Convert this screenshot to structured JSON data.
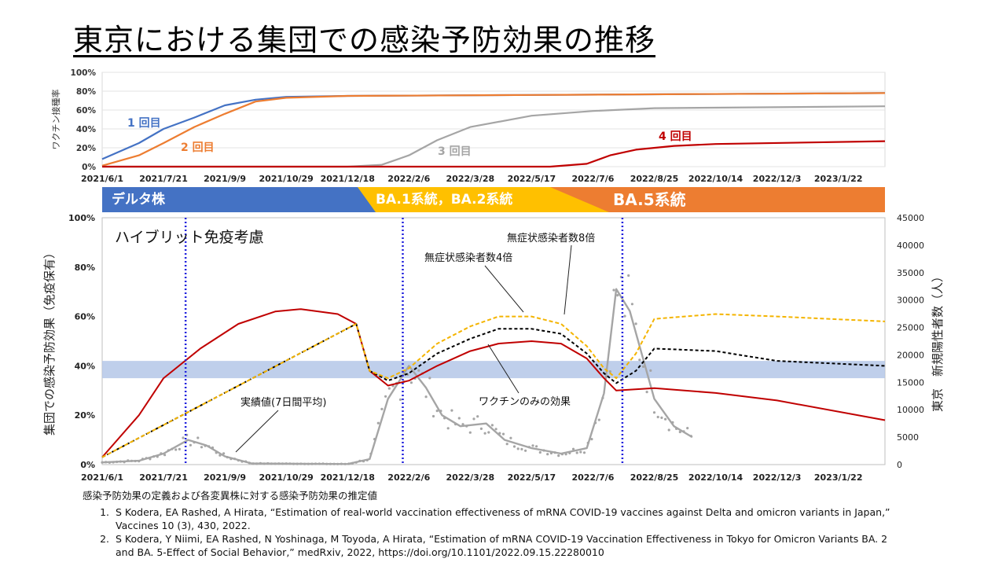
{
  "title": "東京における集団での感染予防効果の推移",
  "colors": {
    "dose1": "#4472c4",
    "dose2": "#ed7d31",
    "dose3": "#a5a5a5",
    "dose4": "#c00000",
    "hybrid_series": "#f4b400",
    "hybrid_black": "#000000",
    "vaccine_only": "#c00000",
    "cases": "#a5a5a5",
    "band": "#b4c7e7",
    "vline": "#2222dd"
  },
  "variants": [
    {
      "label": "デルタ株",
      "color": "#4472c4"
    },
    {
      "label": "BA.1系統，BA.2系統",
      "color": "#ffc000"
    },
    {
      "label": "BA.5系統",
      "color": "#ed7d31"
    }
  ],
  "chart_data": [
    {
      "type": "line",
      "x": [
        "2021/6/1",
        "2021/7/21",
        "2021/9/9",
        "2021/10/29",
        "2021/12/18",
        "2022/2/6",
        "2022/3/28",
        "2022/5/17",
        "2022/7/6",
        "2022/8/25",
        "2022/10/14",
        "2022/12/3",
        "2023/1/22"
      ],
      "ylim": [
        0,
        100
      ],
      "yticks": [
        "0%",
        "20%",
        "40%",
        "60%",
        "80%",
        "100%"
      ],
      "ylabel": "ワクチン接種率",
      "series": [
        {
          "name": "1回目",
          "x": [
            "2021/6/1",
            "2021/7/1",
            "2021/7/21",
            "2021/8/15",
            "2021/9/9",
            "2021/10/4",
            "2021/10/29",
            "2021/12/18",
            "2022/5/17",
            "2023/3/1"
          ],
          "values": [
            8,
            25,
            40,
            52,
            65,
            71,
            74,
            75,
            76,
            78
          ]
        },
        {
          "name": "2回目",
          "x": [
            "2021/6/1",
            "2021/7/1",
            "2021/7/21",
            "2021/8/15",
            "2021/9/9",
            "2021/10/4",
            "2021/10/29",
            "2021/12/18",
            "2022/5/17",
            "2023/3/1"
          ],
          "values": [
            1,
            12,
            25,
            42,
            56,
            69,
            73,
            75,
            76,
            78
          ]
        },
        {
          "name": "3回目",
          "x": [
            "2021/6/1",
            "2021/12/18",
            "2022/1/15",
            "2022/2/6",
            "2022/3/1",
            "2022/3/28",
            "2022/5/17",
            "2022/7/6",
            "2022/8/25",
            "2023/3/1"
          ],
          "values": [
            0,
            0,
            2,
            12,
            28,
            42,
            54,
            59,
            62,
            64
          ]
        },
        {
          "name": "4回目",
          "x": [
            "2021/6/1",
            "2022/6/1",
            "2022/7/1",
            "2022/7/20",
            "2022/8/10",
            "2022/9/10",
            "2022/10/14",
            "2023/3/1"
          ],
          "values": [
            0,
            0,
            3,
            12,
            18,
            22,
            24,
            27
          ]
        }
      ]
    },
    {
      "type": "line",
      "x": [
        "2021/6/1",
        "2021/7/21",
        "2021/9/9",
        "2021/10/29",
        "2021/12/18",
        "2022/2/6",
        "2022/3/28",
        "2022/5/17",
        "2022/7/6",
        "2022/8/25",
        "2022/10/14",
        "2022/12/3",
        "2023/1/22"
      ],
      "ylim": [
        0,
        100
      ],
      "yticks": [
        "0%",
        "20%",
        "40%",
        "60%",
        "80%",
        "100%"
      ],
      "ylabel": "集団での感染予防効果（免疫保有）",
      "y2lim": [
        0,
        45000
      ],
      "y2ticks": [
        "0",
        "5000",
        "10000",
        "15000",
        "20000",
        "25000",
        "30000",
        "35000",
        "40000",
        "45000"
      ],
      "y2label": "東京　新規陽性者数（人）",
      "series": [
        {
          "name": "ワクチンのみの効果",
          "x": [
            "2021/6/1",
            "2021/7/1",
            "2021/7/21",
            "2021/8/20",
            "2021/9/20",
            "2021/10/20",
            "2021/11/10",
            "2021/12/10",
            "2021/12/25",
            "2022/1/5",
            "2022/1/20",
            "2022/2/6",
            "2022/3/1",
            "2022/3/28",
            "2022/4/20",
            "2022/5/17",
            "2022/6/10",
            "2022/7/1",
            "2022/7/15",
            "2022/7/25",
            "2022/8/25",
            "2022/10/14",
            "2022/12/3",
            "2023/3/1"
          ],
          "values": [
            3,
            20,
            35,
            47,
            57,
            62,
            63,
            61,
            57,
            38,
            32,
            34,
            40,
            46,
            49,
            50,
            49,
            43,
            35,
            30,
            31,
            29,
            26,
            18
          ]
        },
        {
          "name": "無症状感染者数4倍",
          "x": [
            "2021/6/1",
            "2021/12/25",
            "2022/1/5",
            "2022/1/20",
            "2022/2/6",
            "2022/3/1",
            "2022/3/28",
            "2022/4/20",
            "2022/5/17",
            "2022/6/10",
            "2022/7/1",
            "2022/7/15",
            "2022/7/25",
            "2022/8/10",
            "2022/8/25",
            "2022/10/14",
            "2022/12/3",
            "2023/3/1"
          ],
          "values": [
            3,
            57,
            38,
            34,
            37,
            45,
            51,
            55,
            55,
            53,
            45,
            37,
            33,
            38,
            47,
            46,
            42,
            40
          ]
        },
        {
          "name": "無症状感染者数8倍",
          "x": [
            "2021/6/1",
            "2021/12/25",
            "2022/1/5",
            "2022/1/20",
            "2022/2/6",
            "2022/3/1",
            "2022/3/28",
            "2022/4/20",
            "2022/5/17",
            "2022/6/10",
            "2022/7/1",
            "2022/7/15",
            "2022/7/25",
            "2022/8/10",
            "2022/8/25",
            "2022/10/14",
            "2022/12/3",
            "2023/3/1"
          ],
          "values": [
            3,
            57,
            38,
            35,
            39,
            49,
            56,
            60,
            60,
            57,
            48,
            39,
            35,
            45,
            59,
            61,
            60,
            58
          ]
        },
        {
          "name": "実績値(7日間平均)",
          "axis": "right",
          "x": [
            "2021/6/1",
            "2021/7/1",
            "2021/7/21",
            "2021/8/10",
            "2021/8/25",
            "2021/9/9",
            "2021/10/1",
            "2021/12/18",
            "2022/1/5",
            "2022/1/20",
            "2022/2/6",
            "2022/2/20",
            "2022/3/5",
            "2022/3/20",
            "2022/4/10",
            "2022/4/25",
            "2022/5/17",
            "2022/6/10",
            "2022/7/1",
            "2022/7/15",
            "2022/7/25",
            "2022/8/5",
            "2022/8/25",
            "2022/9/10",
            "2022/9/25"
          ],
          "values": [
            400,
            700,
            2000,
            4500,
            3500,
            1500,
            200,
            100,
            1000,
            12000,
            18000,
            14000,
            9000,
            7000,
            7500,
            4500,
            3000,
            2000,
            3000,
            13000,
            32000,
            28000,
            12000,
            7000,
            5000
          ]
        }
      ],
      "reference_band": {
        "from": 35,
        "to": 42
      },
      "reference_lines": [
        "2021/8/8",
        "2022/2/1",
        "2022/7/30"
      ]
    }
  ],
  "annotations": {
    "dose1": "1 回目",
    "dose2": "2 回目",
    "dose3": "3 回目",
    "dose4": "4 回目",
    "hybrid": "ハイブリット免疫考慮",
    "x8": "無症状感染者数8倍",
    "x4": "無症状感染者数4倍",
    "vaccine_only": "ワクチンのみの効果",
    "actual": "実績値(7日間平均)"
  },
  "footer": {
    "heading": "感染予防効果の定義および各変異株に対する感染予防効果の推定値",
    "refs": [
      "S Kodera, EA Rashed, A Hirata, “Estimation of real-world vaccination effectiveness of mRNA COVID-19 vaccines against Delta and omicron variants in Japan,” Vaccines 10 (3), 430, 2022.",
      "S Kodera, Y Niimi, EA Rashed, N Yoshinaga, M Toyoda, A Hirata, “Estimation of mRNA COVID-19 Vaccination Effectiveness in Tokyo for Omicron Variants BA. 2 and BA. 5-Effect of Social Behavior,” medRxiv, 2022, https://doi.org/10.1101/2022.09.15.22280010"
    ]
  }
}
